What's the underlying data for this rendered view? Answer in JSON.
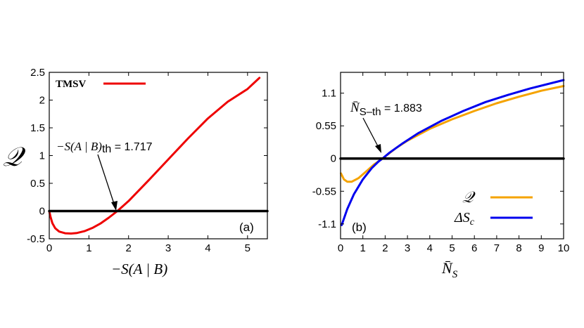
{
  "chart_data": [
    {
      "panel": "a",
      "type": "line",
      "panel_label": "(a)",
      "ylabel": "𝒬",
      "xlabel_prefix": "−S(A | B)",
      "xlim": [
        0,
        5.5
      ],
      "ylim": [
        -0.5,
        2.5
      ],
      "xticks": [
        "0",
        "1",
        "2",
        "3",
        "4",
        "5"
      ],
      "yticks": [
        "-0.5",
        "0",
        "0.5",
        "1",
        "1.5",
        "2",
        "2.5"
      ],
      "legend": {
        "position": "top-left",
        "entries": [
          {
            "label": "TMSV",
            "color": "#ee0000"
          }
        ]
      },
      "annotation": {
        "prefix": "−S(A | B)",
        "sub": "th",
        "value_text": " = 1.717"
      },
      "threshold": 1.717,
      "series": [
        {
          "name": "TMSV",
          "color": "#ee0000",
          "points": [
            [
              0.0,
              0.0
            ],
            [
              0.03,
              -0.1
            ],
            [
              0.08,
              -0.22
            ],
            [
              0.15,
              -0.31
            ],
            [
              0.25,
              -0.37
            ],
            [
              0.4,
              -0.4
            ],
            [
              0.55,
              -0.405
            ],
            [
              0.7,
              -0.395
            ],
            [
              0.9,
              -0.36
            ],
            [
              1.1,
              -0.3
            ],
            [
              1.3,
              -0.22
            ],
            [
              1.5,
              -0.12
            ],
            [
              1.717,
              0.0
            ],
            [
              2.0,
              0.18
            ],
            [
              2.5,
              0.55
            ],
            [
              3.0,
              0.93
            ],
            [
              3.5,
              1.31
            ],
            [
              4.0,
              1.67
            ],
            [
              4.5,
              1.97
            ],
            [
              5.0,
              2.2
            ],
            [
              5.3,
              2.4
            ]
          ]
        },
        {
          "name": "",
          "color": "#000000",
          "points": [
            [
              0,
              0
            ],
            [
              5.5,
              0
            ]
          ]
        }
      ]
    },
    {
      "panel": "b",
      "type": "line",
      "panel_label": "(b)",
      "xlabel_text": "N̄",
      "xlabel_sub": "S",
      "xlim": [
        0,
        10
      ],
      "ylim": [
        -1.35,
        1.45
      ],
      "xticks": [
        "0",
        "1",
        "2",
        "3",
        "4",
        "5",
        "6",
        "7",
        "8",
        "9",
        "10"
      ],
      "yticks": [
        "-1.1",
        "-0.55",
        "0",
        "0.55",
        "1.1"
      ],
      "ytick_values": [
        -1.1,
        -0.55,
        0,
        0.55,
        1.1
      ],
      "legend": {
        "position": "bottom-right",
        "entries": [
          {
            "label": "𝒬",
            "color": "#f5a300"
          },
          {
            "label": "ΔS",
            "sub": "c",
            "color": "#0000ee"
          }
        ]
      },
      "annotation": {
        "text": "N̄",
        "sub": "S–th",
        "value_text": " = 1.883"
      },
      "threshold": 1.883,
      "series": [
        {
          "name": "𝒬",
          "color": "#f5a300",
          "points": [
            [
              0.02,
              -0.25
            ],
            [
              0.15,
              -0.35
            ],
            [
              0.3,
              -0.39
            ],
            [
              0.5,
              -0.39
            ],
            [
              0.8,
              -0.33
            ],
            [
              1.2,
              -0.2
            ],
            [
              1.5,
              -0.1
            ],
            [
              1.883,
              0.0
            ],
            [
              2.5,
              0.18
            ],
            [
              3.0,
              0.3
            ],
            [
              4.0,
              0.5
            ],
            [
              5.0,
              0.66
            ],
            [
              6.0,
              0.8
            ],
            [
              7.0,
              0.93
            ],
            [
              8.0,
              1.04
            ],
            [
              9.0,
              1.14
            ],
            [
              10.0,
              1.22
            ]
          ]
        },
        {
          "name": "ΔS",
          "color": "#0000ee",
          "points": [
            [
              0.05,
              -1.12
            ],
            [
              0.3,
              -0.85
            ],
            [
              0.6,
              -0.6
            ],
            [
              1.0,
              -0.35
            ],
            [
              1.4,
              -0.16
            ],
            [
              1.7,
              -0.05
            ],
            [
              1.883,
              0.0
            ],
            [
              2.2,
              0.1
            ],
            [
              2.8,
              0.26
            ],
            [
              3.5,
              0.43
            ],
            [
              4.5,
              0.63
            ],
            [
              5.5,
              0.8
            ],
            [
              6.5,
              0.95
            ],
            [
              7.5,
              1.07
            ],
            [
              8.5,
              1.18
            ],
            [
              10.0,
              1.32
            ]
          ]
        },
        {
          "name": "",
          "color": "#000000",
          "points": [
            [
              0,
              0
            ],
            [
              10,
              0
            ]
          ]
        }
      ]
    }
  ]
}
